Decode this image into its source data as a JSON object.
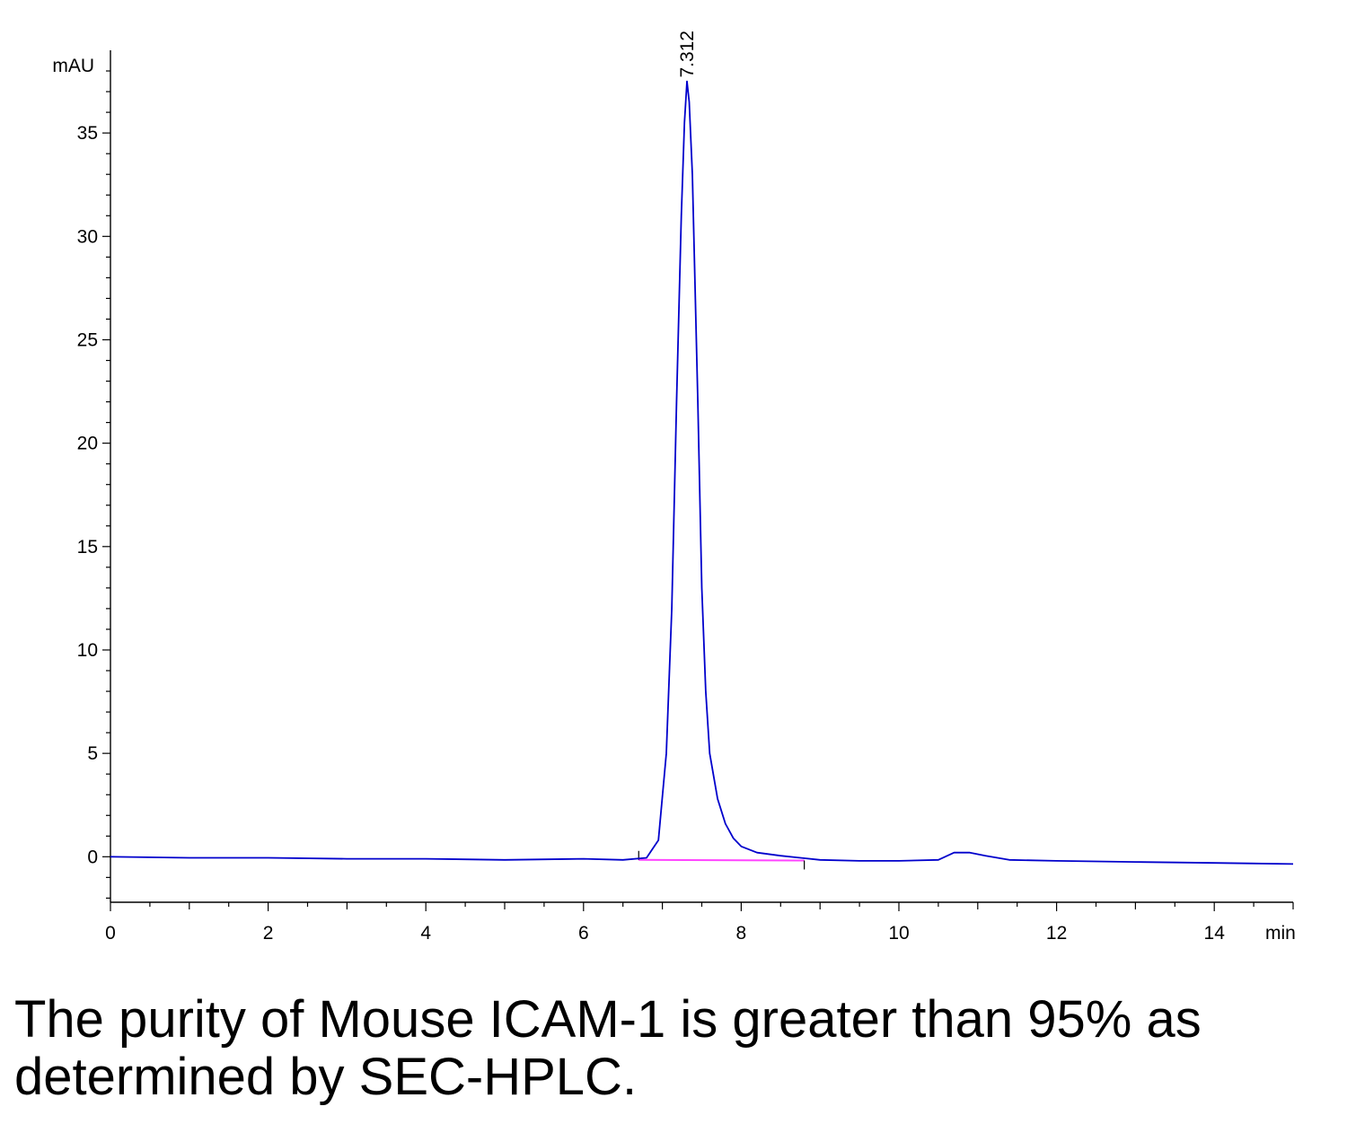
{
  "chart_data": {
    "type": "line",
    "xlabel": "min",
    "ylabel": "mAU",
    "xlim": [
      0,
      15
    ],
    "ylim": [
      -2.2,
      39
    ],
    "x_ticks": [
      0,
      2,
      4,
      6,
      8,
      10,
      12,
      14
    ],
    "x_tick_labels": [
      "0",
      "2",
      "4",
      "6",
      "8",
      "10",
      "12",
      "14"
    ],
    "y_ticks": [
      0,
      5,
      10,
      15,
      20,
      25,
      30,
      35
    ],
    "y_tick_labels": [
      "0",
      "5",
      "10",
      "15",
      "20",
      "25",
      "30",
      "35"
    ],
    "grid": false,
    "legend": "none",
    "series": [
      {
        "color": "#0000cc",
        "x": [
          0,
          1,
          2,
          3,
          4,
          5,
          6,
          6.5,
          6.8,
          6.95,
          7.05,
          7.12,
          7.18,
          7.24,
          7.28,
          7.312,
          7.34,
          7.38,
          7.45,
          7.5,
          7.55,
          7.6,
          7.7,
          7.8,
          7.9,
          8.0,
          8.2,
          8.5,
          9.0,
          9.5,
          10.0,
          10.5,
          10.7,
          10.9,
          11.1,
          11.4,
          12,
          13,
          14,
          15
        ],
        "y": [
          0,
          -0.05,
          -0.05,
          -0.1,
          -0.1,
          -0.15,
          -0.1,
          -0.15,
          -0.05,
          0.8,
          5,
          12,
          22,
          31,
          35.5,
          37.5,
          36.5,
          33,
          22,
          13,
          8,
          5,
          2.8,
          1.6,
          0.9,
          0.5,
          0.2,
          0.05,
          -0.15,
          -0.2,
          -0.2,
          -0.15,
          0.2,
          0.2,
          0.05,
          -0.15,
          -0.2,
          -0.25,
          -0.3,
          -0.35
        ]
      }
    ],
    "baseline": {
      "color": "#ff44ff",
      "x": [
        6.7,
        8.8
      ],
      "y": [
        -0.15,
        -0.18
      ]
    },
    "peaks": [
      {
        "x": 7.312,
        "y": 37.5,
        "label": "7.312"
      }
    ]
  },
  "caption": "The purity of Mouse ICAM-1 is greater than 95% as determined by SEC-HPLC."
}
